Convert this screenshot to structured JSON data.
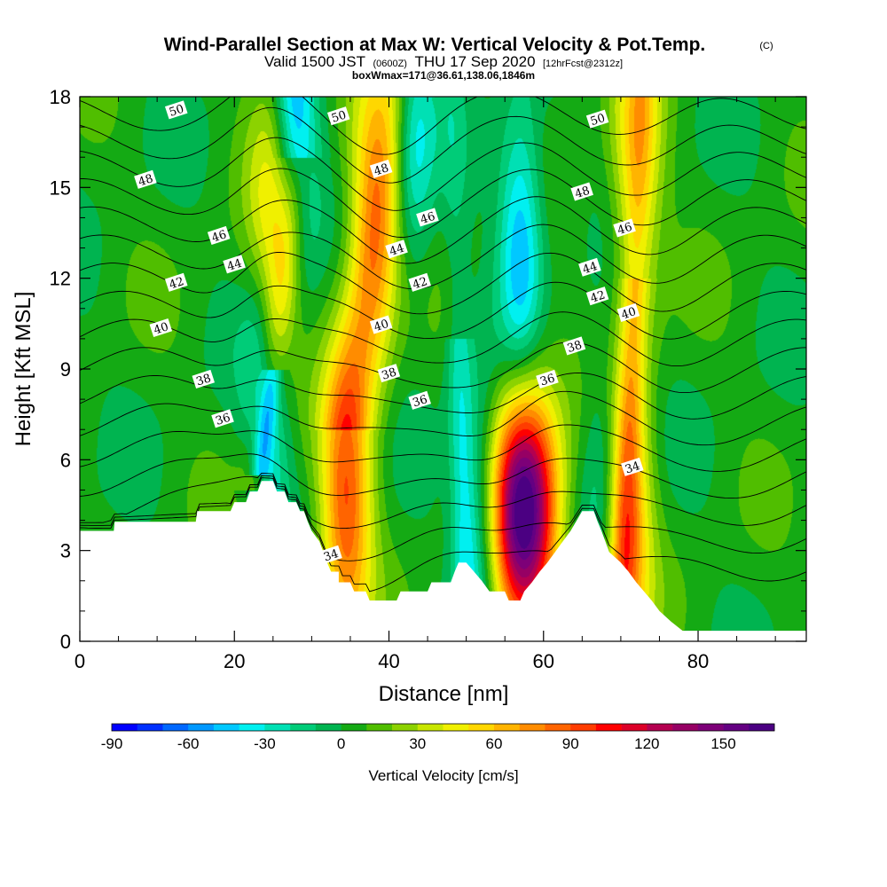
{
  "chart_data": {
    "type": "heatmap",
    "title_main": "Wind-Parallel Section at Max W: Vertical Velocity & Pot.Temp.",
    "title_copyright": "(C)",
    "subtitle_valid": "Valid 1500 JST",
    "subtitle_utc": "(0600Z)",
    "subtitle_date": "THU 17 Sep 2020",
    "subtitle_fcst": "[12hrFcst@2312z]",
    "subtitle_box": "boxWmax=171@36.61,138.06,1846m",
    "xlabel": "Distance [nm]",
    "ylabel": "Height [Kft MSL]",
    "xlim": [
      0,
      94
    ],
    "ylim": [
      0,
      18
    ],
    "xticks": [
      "0",
      "20",
      "40",
      "60",
      "80"
    ],
    "yticks": [
      "0",
      "3",
      "6",
      "9",
      "12",
      "15",
      "18"
    ],
    "colorbar": {
      "title": "Vertical Velocity [cm/s]",
      "min": -90,
      "max": 170,
      "step": 10,
      "tick_labels": [
        "-90",
        "-60",
        "-30",
        "0",
        "30",
        "60",
        "90",
        "120",
        "150"
      ],
      "colors": [
        "#0000ff",
        "#0030ff",
        "#0068ff",
        "#0098ff",
        "#00c8ff",
        "#00f0f0",
        "#00e0b4",
        "#00cc78",
        "#00b450",
        "#14aa14",
        "#50be00",
        "#8cd200",
        "#c8e600",
        "#f0f000",
        "#ffd700",
        "#ffb400",
        "#ff8c00",
        "#ff6400",
        "#ff3c00",
        "#ff0000",
        "#dc0028",
        "#b40050",
        "#960064",
        "#7d0078",
        "#640082",
        "#4b0082"
      ]
    },
    "updrafts": [
      {
        "x": 25,
        "z": 14,
        "peak": 45
      },
      {
        "x": 34.5,
        "z": 4.5,
        "peak": 80
      },
      {
        "x": 38,
        "z": 14,
        "peak": 55
      },
      {
        "x": 57.5,
        "z": 4.3,
        "peak": 171
      },
      {
        "x": 70.5,
        "z": 3.8,
        "peak": 75
      },
      {
        "x": 72,
        "z": 16,
        "peak": 50
      }
    ],
    "downdrafts": [
      {
        "x": 28,
        "z": 17,
        "peak": -65
      },
      {
        "x": 24,
        "z": 7.5,
        "peak": -55
      },
      {
        "x": 43,
        "z": 17,
        "peak": -45
      },
      {
        "x": 57,
        "z": 13.2,
        "peak": -55
      },
      {
        "x": 52,
        "z": 4,
        "peak": -40
      },
      {
        "x": 68,
        "z": 5.5,
        "peak": -40
      }
    ],
    "terrain": [
      [
        0,
        3.65
      ],
      [
        4.4,
        3.65
      ],
      [
        4.5,
        3.95
      ],
      [
        15,
        3.95
      ],
      [
        15.2,
        4.3
      ],
      [
        19.5,
        4.3
      ],
      [
        20,
        4.6
      ],
      [
        21.5,
        4.6
      ],
      [
        22,
        4.95
      ],
      [
        23,
        4.95
      ],
      [
        23.5,
        5.3
      ],
      [
        25,
        5.3
      ],
      [
        25.5,
        4.95
      ],
      [
        26.5,
        4.95
      ],
      [
        27,
        4.6
      ],
      [
        28,
        4.6
      ],
      [
        28.5,
        4.3
      ],
      [
        29,
        4.3
      ],
      [
        29.5,
        3.95
      ],
      [
        30,
        3.65
      ],
      [
        31,
        3.3
      ],
      [
        31.5,
        2.95
      ],
      [
        32,
        2.6
      ],
      [
        32.5,
        2.3
      ],
      [
        33.5,
        2.3
      ],
      [
        33.5,
        1.95
      ],
      [
        35,
        1.95
      ],
      [
        35.5,
        1.65
      ],
      [
        37,
        1.65
      ],
      [
        37.5,
        1.35
      ],
      [
        41,
        1.35
      ],
      [
        41.5,
        1.65
      ],
      [
        45,
        1.65
      ],
      [
        45.5,
        1.95
      ],
      [
        48,
        1.95
      ],
      [
        48.5,
        2.3
      ],
      [
        49,
        2.6
      ],
      [
        50,
        2.6
      ],
      [
        51,
        2.3
      ],
      [
        52,
        2.0
      ],
      [
        53,
        1.65
      ],
      [
        55,
        1.65
      ],
      [
        55.5,
        1.35
      ],
      [
        57,
        1.35
      ],
      [
        57.5,
        1.65
      ],
      [
        58.5,
        1.95
      ],
      [
        59.5,
        2.3
      ],
      [
        60.5,
        2.6
      ],
      [
        61.5,
        2.95
      ],
      [
        62.5,
        3.3
      ],
      [
        63.5,
        3.65
      ],
      [
        65,
        4.3
      ],
      [
        66.5,
        4.3
      ],
      [
        67,
        3.95
      ],
      [
        67.5,
        3.65
      ],
      [
        68,
        3.3
      ],
      [
        68.5,
        2.95
      ],
      [
        70,
        2.6
      ],
      [
        71,
        2.3
      ],
      [
        72,
        1.95
      ],
      [
        73,
        1.65
      ],
      [
        74,
        1.35
      ],
      [
        75,
        1.0
      ],
      [
        76.5,
        0.65
      ],
      [
        78,
        0.35
      ],
      [
        79.5,
        0.35
      ],
      [
        94,
        0.35
      ]
    ],
    "theta_levels": [
      34,
      35,
      36,
      37,
      38,
      39,
      40,
      41,
      42,
      43,
      44,
      45,
      46,
      47,
      48,
      49,
      50
    ],
    "theta_labels": [
      {
        "text": "50",
        "x": 12.5,
        "z": 17.55
      },
      {
        "text": "50",
        "x": 33.5,
        "z": 17.35
      },
      {
        "text": "50",
        "x": 67,
        "z": 17.25
      },
      {
        "text": "48",
        "x": 8.5,
        "z": 15.25
      },
      {
        "text": "48",
        "x": 39,
        "z": 15.6
      },
      {
        "text": "48",
        "x": 65,
        "z": 14.85
      },
      {
        "text": "46",
        "x": 18,
        "z": 13.4
      },
      {
        "text": "46",
        "x": 45,
        "z": 14.0
      },
      {
        "text": "46",
        "x": 70.5,
        "z": 13.65
      },
      {
        "text": "44",
        "x": 20,
        "z": 12.45
      },
      {
        "text": "44",
        "x": 41,
        "z": 12.95
      },
      {
        "text": "44",
        "x": 66,
        "z": 12.35
      },
      {
        "text": "42",
        "x": 12.5,
        "z": 11.85
      },
      {
        "text": "42",
        "x": 44,
        "z": 11.85
      },
      {
        "text": "42",
        "x": 67,
        "z": 11.4
      },
      {
        "text": "40",
        "x": 10.5,
        "z": 10.35
      },
      {
        "text": "40",
        "x": 39,
        "z": 10.45
      },
      {
        "text": "40",
        "x": 71,
        "z": 10.85
      },
      {
        "text": "38",
        "x": 16,
        "z": 8.65
      },
      {
        "text": "38",
        "x": 40,
        "z": 8.85
      },
      {
        "text": "38",
        "x": 64,
        "z": 9.75
      },
      {
        "text": "36",
        "x": 18.5,
        "z": 7.35
      },
      {
        "text": "36",
        "x": 44,
        "z": 7.95
      },
      {
        "text": "36",
        "x": 60.5,
        "z": 8.65
      },
      {
        "text": "34",
        "x": 32.5,
        "z": 2.85
      },
      {
        "text": "34",
        "x": 71.5,
        "z": 5.75
      }
    ]
  }
}
